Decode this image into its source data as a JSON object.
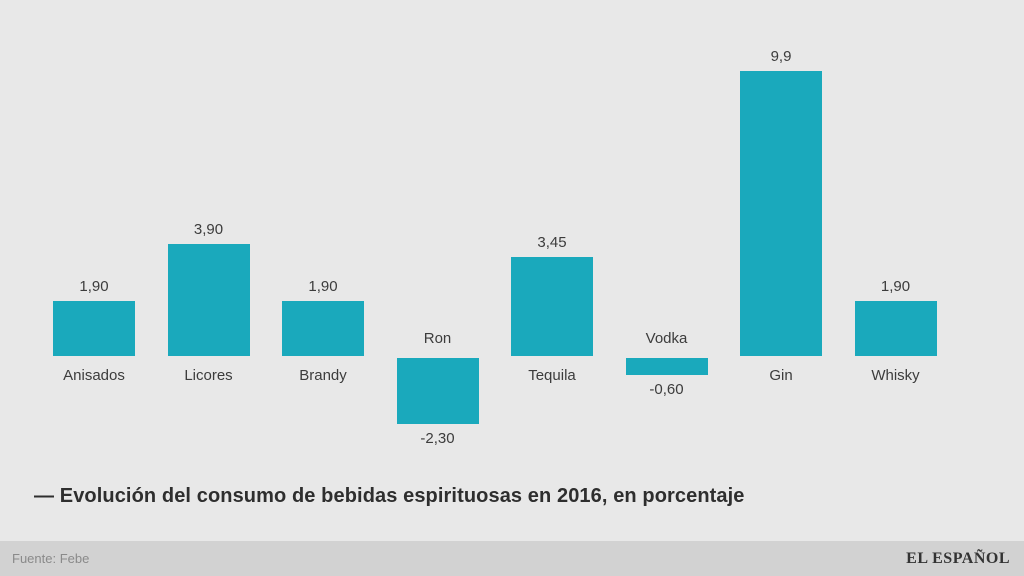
{
  "chart_data": {
    "type": "bar",
    "categories": [
      "Anisados",
      "Licores",
      "Brandy",
      "Ron",
      "Tequila",
      "Vodka",
      "Gin",
      "Whisky"
    ],
    "values": [
      1.9,
      3.9,
      1.9,
      -2.3,
      3.45,
      -0.6,
      9.9,
      1.9
    ],
    "value_labels": [
      "1,90",
      "3,90",
      "1,90",
      "-2,30",
      "3,45",
      "-0,60",
      "9,9",
      "1,90"
    ],
    "title": "— Evolución del consumo de bebidas espirituosas en 2016, en porcentaje",
    "xlabel": "",
    "ylabel": "",
    "ylim": [
      -2.6,
      10.3
    ],
    "grid": false,
    "legend": false,
    "bar_color": "#1aa9bc",
    "background_color": "#e8e8e8"
  },
  "footer": {
    "source": "Fuente: Febe",
    "brand": "EL ESPAÑOL",
    "background_color": "#d2d2d2"
  }
}
